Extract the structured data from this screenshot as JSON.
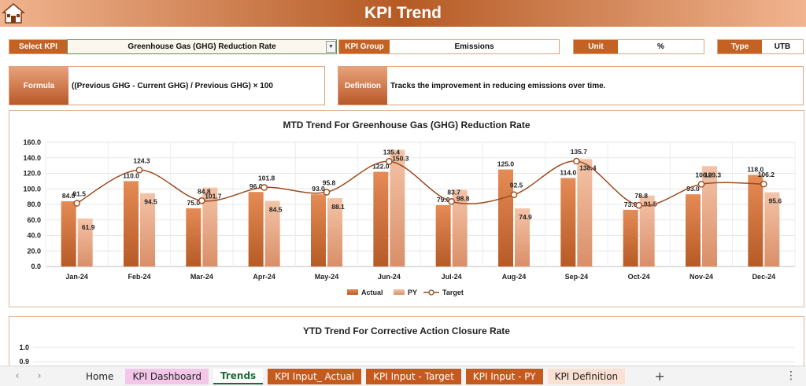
{
  "header": {
    "title": "KPI Trend",
    "home_icon": "home-icon"
  },
  "controls": {
    "select_kpi_label": "Select KPI",
    "select_kpi_value": "Greenhouse Gas (GHG) Reduction Rate",
    "kpi_group_label": "KPI Group",
    "kpi_group_value": "Emissions",
    "unit_label": "Unit",
    "unit_value": "%",
    "type_label": "Type",
    "type_value": "UTB"
  },
  "formula": {
    "label": "Formula",
    "value": "((Previous GHG - Current GHG) / Previous GHG) × 100"
  },
  "definition": {
    "label": "Definition",
    "value": "Tracks the improvement in reducing emissions over time."
  },
  "colors": {
    "actual": "#d9733a",
    "py": "#eeb79c",
    "target": "#9c4a1f",
    "accent": "#c46224"
  },
  "chart_data": [
    {
      "type": "bar",
      "title": "MTD Trend For Greenhouse Gas (GHG) Reduction Rate",
      "categories": [
        "Jan-24",
        "Feb-24",
        "Mar-24",
        "Apr-24",
        "May-24",
        "Jun-24",
        "Jul-24",
        "Aug-24",
        "Sep-24",
        "Oct-24",
        "Nov-24",
        "Dec-24"
      ],
      "series": [
        {
          "name": "Actual",
          "kind": "bar",
          "values": [
            84.0,
            110.0,
            75.0,
            96.0,
            93.0,
            122.0,
            79.0,
            125.0,
            114.0,
            73.0,
            93.0,
            118.0
          ]
        },
        {
          "name": "PY",
          "kind": "bar",
          "values": [
            61.9,
            94.5,
            101.7,
            84.5,
            88.1,
            150.3,
            98.8,
            74.9,
            138.4,
            91.5,
            129.3,
            95.6
          ]
        },
        {
          "name": "Target",
          "kind": "line",
          "values": [
            81.5,
            124.3,
            84.8,
            101.8,
            95.8,
            135.4,
            83.7,
            92.5,
            135.7,
            78.8,
            106.0,
            106.2
          ]
        }
      ],
      "yticks": [
        "0.0",
        "20.0",
        "40.0",
        "60.0",
        "80.0",
        "100.0",
        "120.0",
        "140.0",
        "160.0"
      ],
      "ylim": [
        0,
        160
      ],
      "legend": "bottom",
      "grid": true
    },
    {
      "type": "bar",
      "title": "YTD Trend For Corrective Action Closure Rate",
      "yticks": [
        "1.0",
        "0.9"
      ]
    }
  ],
  "sheet_tabs": [
    {
      "label": "Home",
      "style": "plain"
    },
    {
      "label": "KPI Dashboard",
      "style": "pink"
    },
    {
      "label": "Trends",
      "style": "active"
    },
    {
      "label": "KPI Input_ Actual",
      "style": "orange"
    },
    {
      "label": "KPI Input - Target",
      "style": "orange"
    },
    {
      "label": "KPI Input - PY",
      "style": "orange"
    },
    {
      "label": "KPI Definition",
      "style": "peach"
    }
  ],
  "tab_nav": {
    "prev": "‹",
    "next": "›",
    "add": "+",
    "more": "⋮"
  }
}
